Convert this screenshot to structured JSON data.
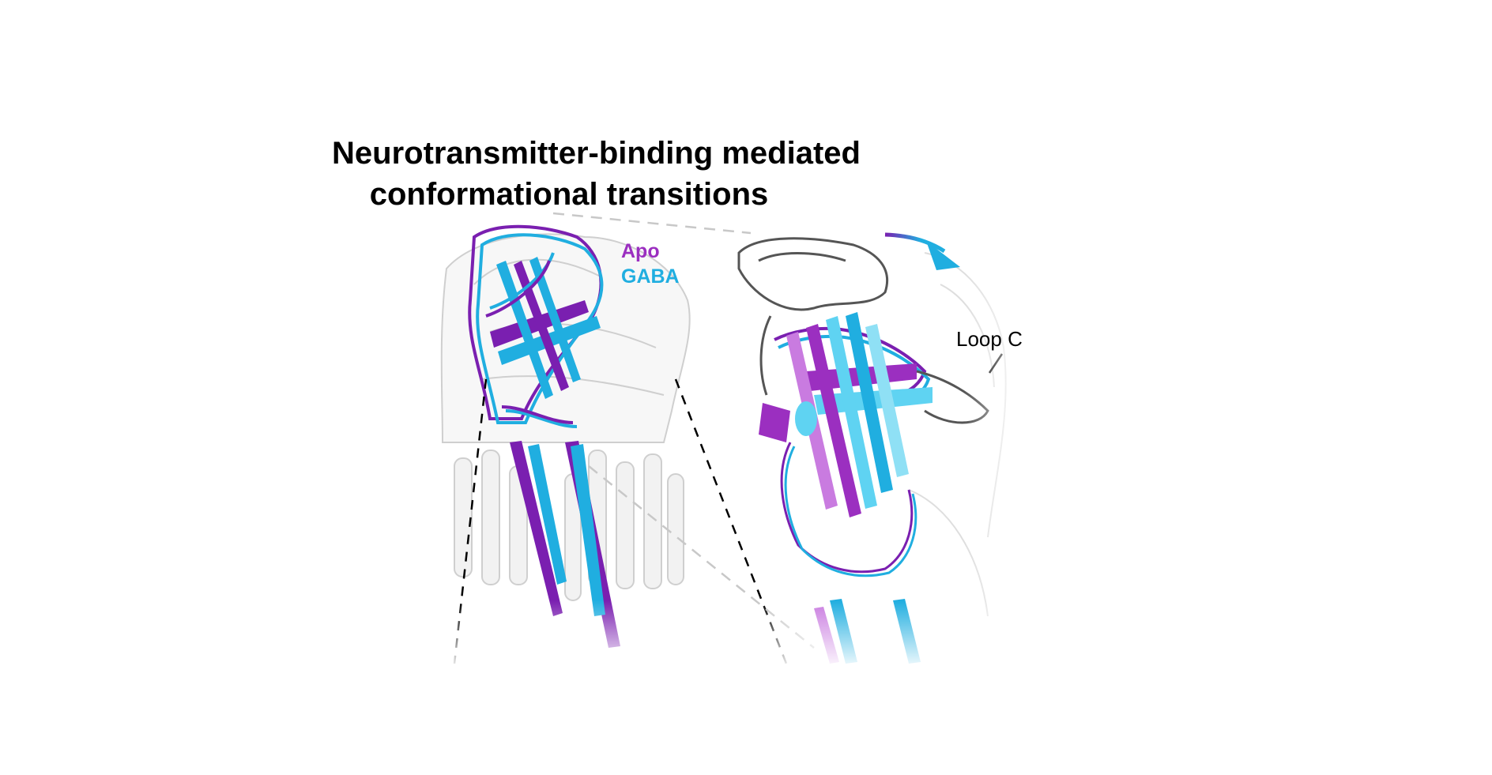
{
  "title": {
    "line1": "Neurotransmitter-binding mediated",
    "line2": "conformational transitions"
  },
  "legend": {
    "apo_label": "Apo",
    "gaba_label": "GABA"
  },
  "annotations": {
    "loop_label": "Loop C"
  },
  "colors": {
    "apo": "#7a1fb0",
    "apo_light": "#9b2fc0",
    "gaba": "#20aee0",
    "gaba_light": "#5fd3f2",
    "ghost": "#d9d9d9",
    "text": "#000000"
  }
}
